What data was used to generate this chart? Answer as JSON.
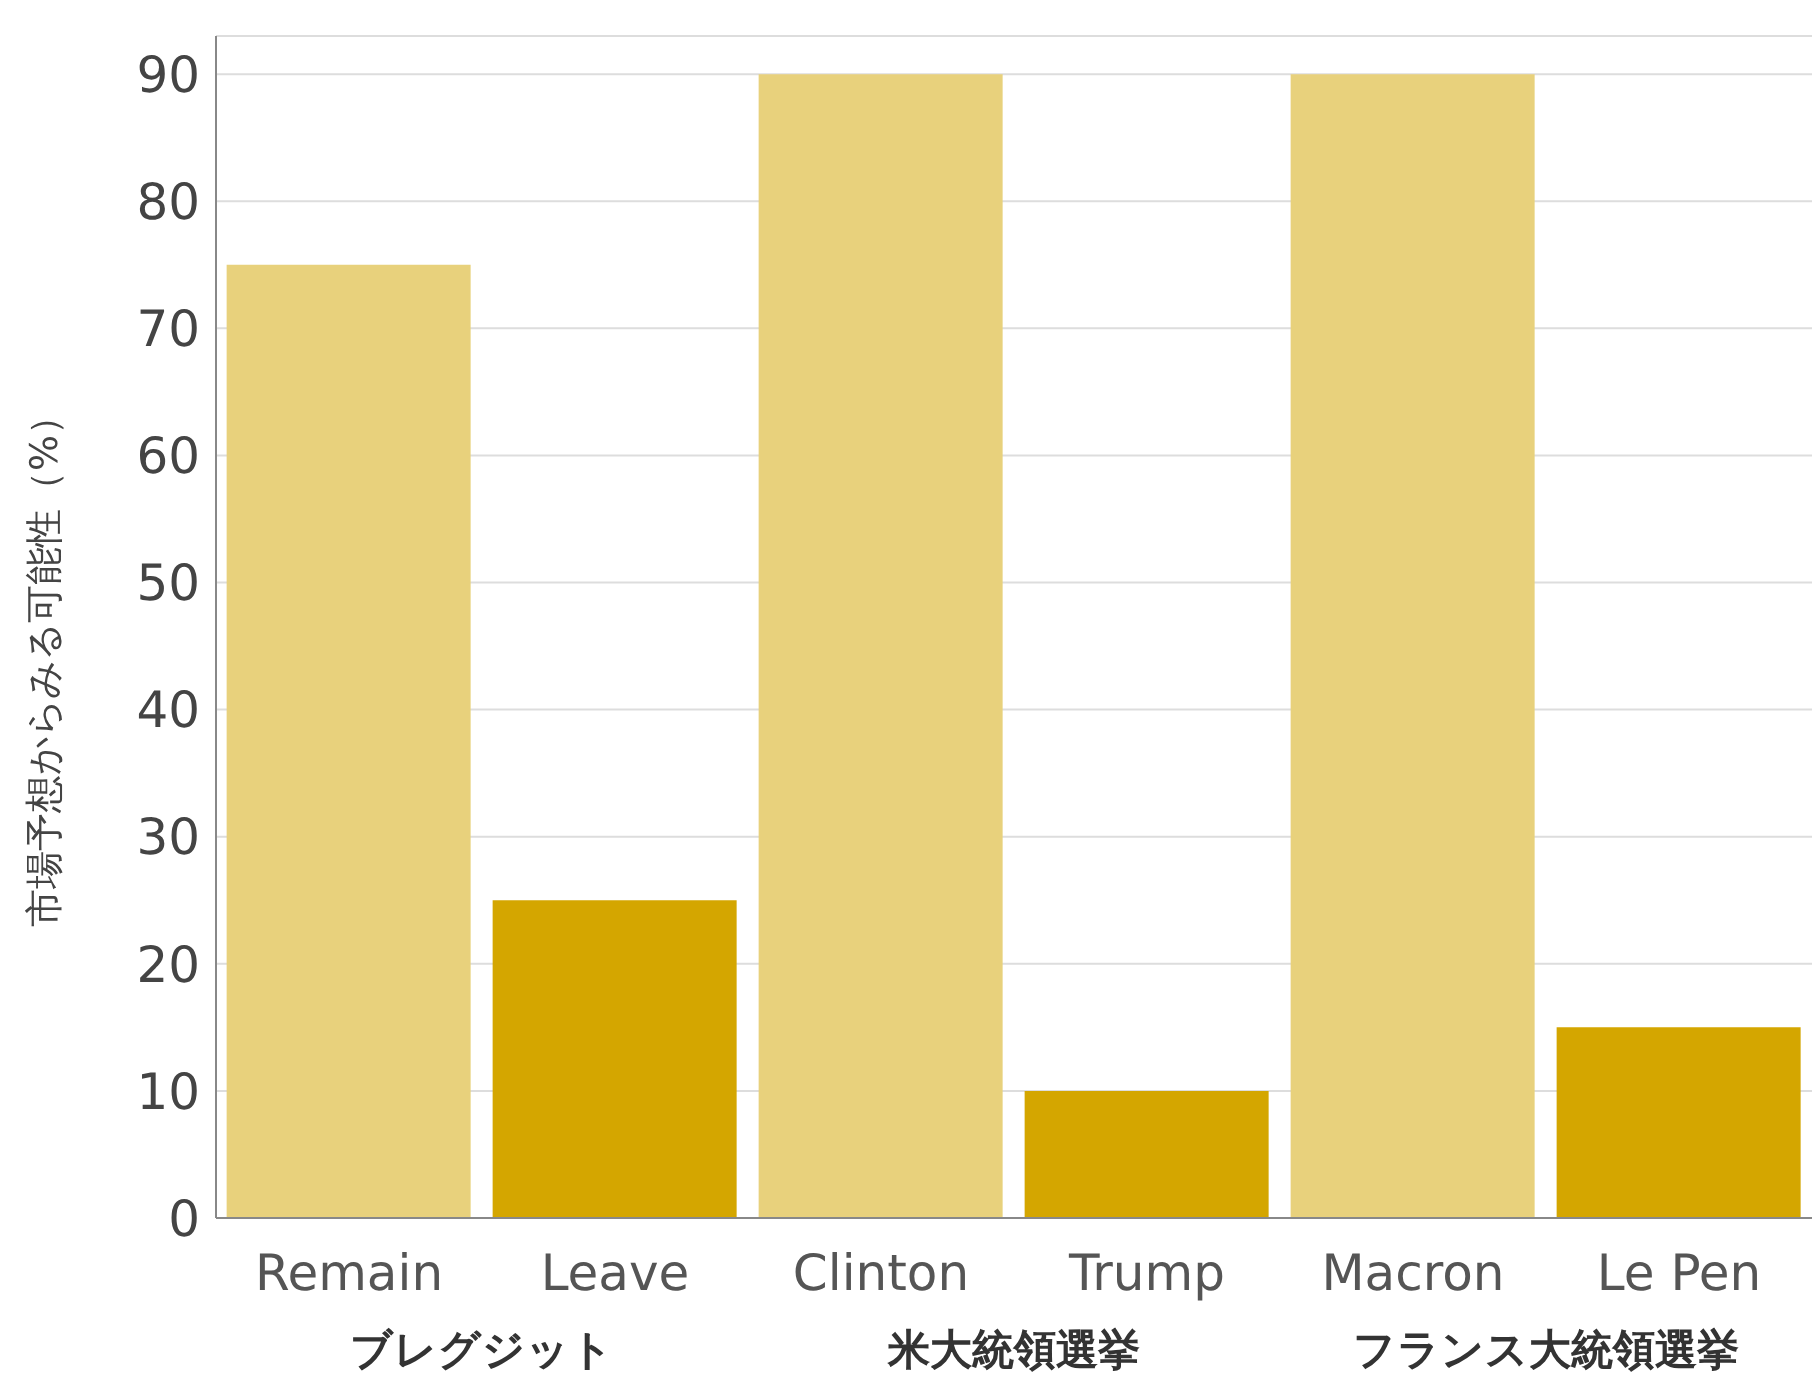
{
  "chart_data": {
    "type": "bar",
    "ylabel": "市場予想からみる可能性（%）",
    "categories": [
      "Remain",
      "Leave",
      "Clinton",
      "Trump",
      "Macron",
      "Le Pen"
    ],
    "values": [
      75,
      25,
      90,
      10,
      90,
      15
    ],
    "colors": [
      "#e8d17c",
      "#d4a600",
      "#e8d17c",
      "#d4a600",
      "#e8d17c",
      "#d4a600"
    ],
    "ylim": [
      0,
      93
    ],
    "yticks": [
      0,
      10,
      20,
      30,
      40,
      50,
      60,
      70,
      80,
      90
    ],
    "grid": "y",
    "annotations": [
      "ブレグジット",
      "米大統領選挙",
      "フランス大統領選挙"
    ]
  }
}
